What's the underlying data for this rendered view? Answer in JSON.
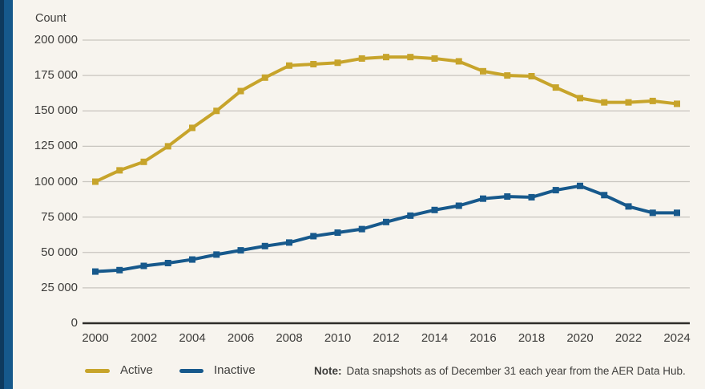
{
  "page": {
    "background_color": "#f7f4ee",
    "accent_bar_color": "#16598c",
    "accent_bar_dark_color": "#0e3a5e",
    "gridline_color": "#c8c5bf",
    "axis_line_color": "#2e2c29"
  },
  "chart_data": {
    "type": "line",
    "title": "",
    "ylabel": "Count",
    "xlabel": "",
    "x": [
      2000,
      2001,
      2002,
      2003,
      2004,
      2005,
      2006,
      2007,
      2008,
      2009,
      2010,
      2011,
      2012,
      2013,
      2014,
      2015,
      2016,
      2017,
      2018,
      2019,
      2020,
      2021,
      2022,
      2023,
      2024
    ],
    "series": [
      {
        "name": "Active",
        "color": "#c7a42b",
        "values": [
          100000,
          108000,
          114000,
          125000,
          138000,
          150000,
          164000,
          173500,
          182000,
          183000,
          184000,
          187000,
          188000,
          188000,
          187000,
          185000,
          178000,
          175000,
          174500,
          166500,
          159000,
          156000,
          156000,
          157000,
          155000
        ]
      },
      {
        "name": "Inactive",
        "color": "#17598c",
        "values": [
          36500,
          37500,
          40500,
          42500,
          45000,
          48500,
          51500,
          54500,
          57000,
          61500,
          64000,
          66500,
          71500,
          76000,
          80000,
          83000,
          88000,
          89500,
          89000,
          94000,
          97000,
          90500,
          82500,
          78000,
          78000
        ]
      }
    ],
    "ylim": [
      0,
      200000
    ],
    "ytick_step": 25000,
    "ytick_labels": [
      "200 000",
      "175 000",
      "150 000",
      "125 000",
      "100 000",
      "75 000",
      "50 000",
      "25 000",
      "0"
    ],
    "xtick_labels": [
      "2000",
      "2002",
      "2004",
      "2006",
      "2008",
      "2010",
      "2012",
      "2014",
      "2016",
      "2018",
      "2020",
      "2022",
      "2024"
    ],
    "grid": "horizontal",
    "legend_position": "bottom"
  },
  "note": {
    "label": "Note:",
    "text": "Data snapshots as of December 31 each year from the AER Data Hub."
  }
}
